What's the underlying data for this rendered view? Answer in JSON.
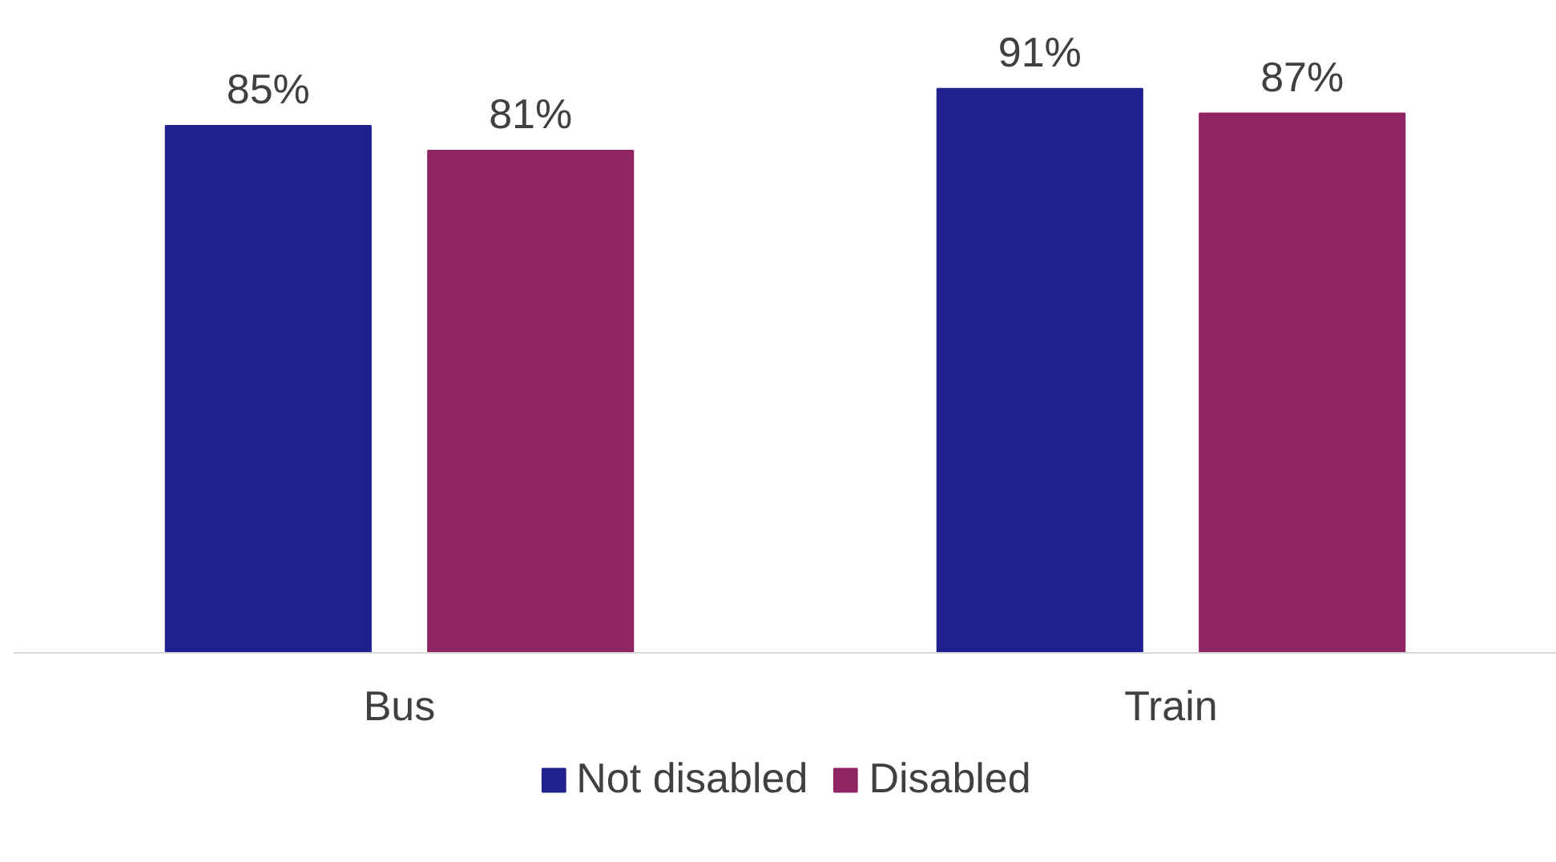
{
  "chart_data": {
    "type": "bar",
    "categories": [
      "Bus",
      "Train"
    ],
    "series": [
      {
        "name": "Not disabled",
        "color": "#21208f",
        "values": [
          85,
          91
        ],
        "value_labels": [
          "85%",
          "91%"
        ]
      },
      {
        "name": "Disabled",
        "color": "#8f2563",
        "values": [
          81,
          87
        ],
        "value_labels": [
          "81%",
          "87%"
        ]
      }
    ],
    "legend": "bottom"
  }
}
